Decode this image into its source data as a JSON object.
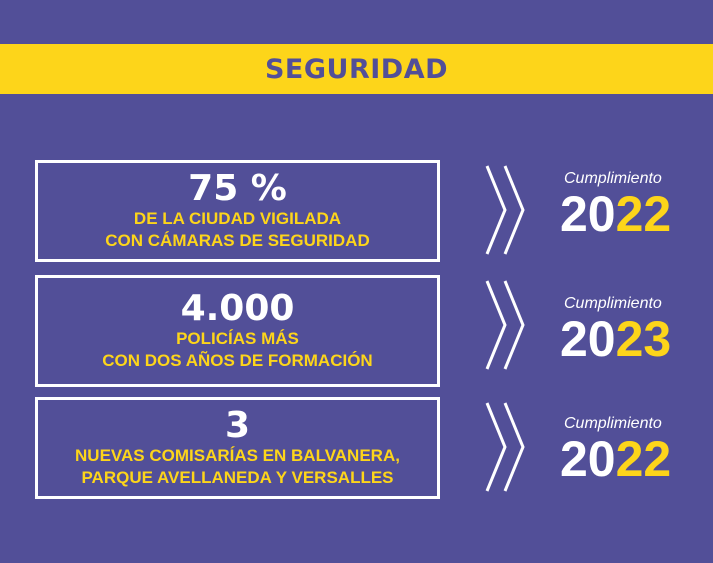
{
  "banner": {
    "title": "SEGURIDAD"
  },
  "rows": [
    {
      "figure": "75 %",
      "line1": "DE LA CIUDAD VIGILADA",
      "line2": "CON CÁMARAS DE SEGURIDAD",
      "label": "Cumplimiento",
      "year_white": "20",
      "year_yellow": "22"
    },
    {
      "figure": "4.000",
      "line1": "POLICÍAS MÁS",
      "line2": "CON DOS AÑOS DE FORMACIÓN",
      "label": "Cumplimiento",
      "year_white": "20",
      "year_yellow": "23"
    },
    {
      "figure": "3",
      "line1": "NUEVAS COMISARÍAS EN BALVANERA,",
      "line2": "PARQUE AVELLANEDA Y VERSALLES",
      "label": "Cumplimiento",
      "year_white": "20",
      "year_yellow": "22"
    }
  ],
  "colors": {
    "background": "#524f98",
    "accent": "#fdd51a",
    "text": "#ffffff"
  },
  "icons": {
    "arrow": "double-chevron-right-icon"
  }
}
